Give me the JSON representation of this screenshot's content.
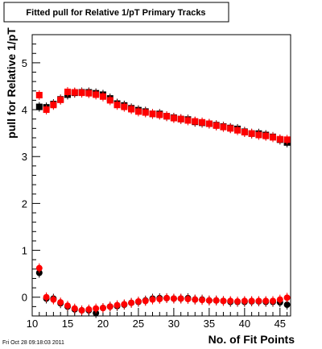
{
  "footer": {
    "timestamp": "Fri Oct 28 09:18:03 2011"
  },
  "chart_data": {
    "type": "scatter",
    "title": "Fitted pull for Relative 1/pT Primary Tracks",
    "xlabel": "No. of Fit Points",
    "ylabel": "pull for Relative 1/pT",
    "xlim": [
      10,
      46.5
    ],
    "ylim": [
      -0.4,
      5.6
    ],
    "x_ticks": [
      10,
      15,
      20,
      25,
      30,
      35,
      40,
      45
    ],
    "y_ticks": [
      0,
      1,
      2,
      3,
      4,
      5
    ],
    "grid": false,
    "legend": "none",
    "series": [
      {
        "marker": "square",
        "color": "#000000",
        "points": [
          [
            11,
            4.06
          ],
          [
            12,
            4.05
          ],
          [
            13,
            4.12
          ],
          [
            14,
            4.22
          ],
          [
            15,
            4.32
          ],
          [
            16,
            4.36
          ],
          [
            17,
            4.37
          ],
          [
            18,
            4.37
          ],
          [
            19,
            4.35
          ],
          [
            20,
            4.32
          ],
          [
            21,
            4.24
          ],
          [
            22,
            4.13
          ],
          [
            23,
            4.09
          ],
          [
            24,
            4.03
          ],
          [
            25,
            3.99
          ],
          [
            26,
            3.96
          ],
          [
            27,
            3.91
          ],
          [
            28,
            3.91
          ],
          [
            29,
            3.86
          ],
          [
            30,
            3.83
          ],
          [
            31,
            3.8
          ],
          [
            32,
            3.79
          ],
          [
            33,
            3.74
          ],
          [
            34,
            3.72
          ],
          [
            35,
            3.7
          ],
          [
            36,
            3.67
          ],
          [
            37,
            3.64
          ],
          [
            38,
            3.61
          ],
          [
            39,
            3.59
          ],
          [
            40,
            3.53
          ],
          [
            41,
            3.49
          ],
          [
            42,
            3.49
          ],
          [
            43,
            3.46
          ],
          [
            44,
            3.42
          ],
          [
            45,
            3.36
          ],
          [
            46,
            3.3
          ]
        ]
      },
      {
        "marker": "square",
        "color": "#ff0000",
        "points": [
          [
            11,
            4.31
          ],
          [
            12,
            4.0
          ],
          [
            13,
            4.1
          ],
          [
            14,
            4.21
          ],
          [
            15,
            4.38
          ],
          [
            16,
            4.37
          ],
          [
            17,
            4.36
          ],
          [
            18,
            4.35
          ],
          [
            19,
            4.32
          ],
          [
            20,
            4.28
          ],
          [
            21,
            4.2
          ],
          [
            22,
            4.1
          ],
          [
            23,
            4.06
          ],
          [
            24,
            4.01
          ],
          [
            25,
            3.96
          ],
          [
            26,
            3.94
          ],
          [
            27,
            3.91
          ],
          [
            28,
            3.89
          ],
          [
            29,
            3.86
          ],
          [
            30,
            3.82
          ],
          [
            31,
            3.8
          ],
          [
            32,
            3.77
          ],
          [
            33,
            3.75
          ],
          [
            34,
            3.73
          ],
          [
            35,
            3.7
          ],
          [
            36,
            3.66
          ],
          [
            37,
            3.63
          ],
          [
            38,
            3.6
          ],
          [
            39,
            3.56
          ],
          [
            40,
            3.52
          ],
          [
            41,
            3.49
          ],
          [
            42,
            3.46
          ],
          [
            43,
            3.44
          ],
          [
            44,
            3.41
          ],
          [
            45,
            3.37
          ],
          [
            46,
            3.36
          ]
        ]
      },
      {
        "marker": "circle",
        "color": "#000000",
        "points": [
          [
            11,
            0.52
          ],
          [
            12,
            -0.03
          ],
          [
            13,
            -0.03
          ],
          [
            14,
            -0.13
          ],
          [
            15,
            -0.2
          ],
          [
            16,
            -0.26
          ],
          [
            17,
            -0.28
          ],
          [
            18,
            -0.28
          ],
          [
            19,
            -0.34
          ],
          [
            20,
            -0.23
          ],
          [
            21,
            -0.2
          ],
          [
            22,
            -0.19
          ],
          [
            23,
            -0.16
          ],
          [
            24,
            -0.12
          ],
          [
            25,
            -0.1
          ],
          [
            26,
            -0.07
          ],
          [
            27,
            -0.03
          ],
          [
            28,
            -0.02
          ],
          [
            29,
            -0.02
          ],
          [
            30,
            -0.03
          ],
          [
            31,
            -0.03
          ],
          [
            32,
            -0.02
          ],
          [
            33,
            -0.05
          ],
          [
            34,
            -0.05
          ],
          [
            35,
            -0.07
          ],
          [
            36,
            -0.07
          ],
          [
            37,
            -0.08
          ],
          [
            38,
            -0.1
          ],
          [
            39,
            -0.1
          ],
          [
            40,
            -0.1
          ],
          [
            41,
            -0.09
          ],
          [
            42,
            -0.09
          ],
          [
            43,
            -0.1
          ],
          [
            44,
            -0.1
          ],
          [
            45,
            -0.11
          ],
          [
            46,
            -0.16
          ]
        ]
      },
      {
        "marker": "circle",
        "color": "#ff0000",
        "points": [
          [
            11,
            0.62
          ],
          [
            12,
            0.0
          ],
          [
            13,
            -0.05
          ],
          [
            14,
            -0.11
          ],
          [
            15,
            -0.18
          ],
          [
            16,
            -0.24
          ],
          [
            17,
            -0.28
          ],
          [
            18,
            -0.26
          ],
          [
            19,
            -0.24
          ],
          [
            20,
            -0.23
          ],
          [
            21,
            -0.2
          ],
          [
            22,
            -0.17
          ],
          [
            23,
            -0.15
          ],
          [
            24,
            -0.12
          ],
          [
            25,
            -0.09
          ],
          [
            26,
            -0.08
          ],
          [
            27,
            -0.05
          ],
          [
            28,
            -0.04
          ],
          [
            29,
            -0.02
          ],
          [
            30,
            -0.03
          ],
          [
            31,
            -0.03
          ],
          [
            32,
            -0.04
          ],
          [
            33,
            -0.05
          ],
          [
            34,
            -0.06
          ],
          [
            35,
            -0.07
          ],
          [
            36,
            -0.07
          ],
          [
            37,
            -0.08
          ],
          [
            38,
            -0.08
          ],
          [
            39,
            -0.09
          ],
          [
            40,
            -0.08
          ],
          [
            41,
            -0.08
          ],
          [
            42,
            -0.08
          ],
          [
            43,
            -0.08
          ],
          [
            44,
            -0.08
          ],
          [
            45,
            -0.05
          ],
          [
            46,
            -0.01
          ]
        ]
      }
    ]
  }
}
